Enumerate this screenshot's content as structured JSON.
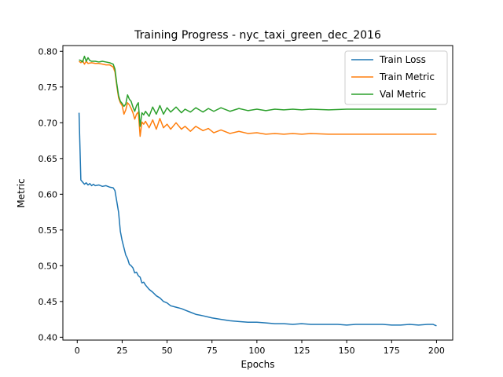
{
  "chart_data": {
    "type": "line",
    "title": "Training Progress - nyc_taxi_green_dec_2016",
    "xlabel": "Epochs",
    "ylabel": "Metric",
    "xlim": [
      -8,
      209
    ],
    "ylim": [
      0.396,
      0.808
    ],
    "xticks": [
      0,
      25,
      50,
      75,
      100,
      125,
      150,
      175,
      200
    ],
    "yticks": [
      0.4,
      0.45,
      0.5,
      0.55,
      0.6,
      0.65,
      0.7,
      0.75,
      0.8
    ],
    "grid": false,
    "legend_position": "top-right",
    "series": [
      {
        "name": "Train Loss",
        "color": "#1f77b4",
        "points": [
          [
            1,
            0.714
          ],
          [
            2,
            0.62
          ],
          [
            3,
            0.617
          ],
          [
            4,
            0.614
          ],
          [
            5,
            0.616
          ],
          [
            6,
            0.613
          ],
          [
            7,
            0.615
          ],
          [
            8,
            0.612
          ],
          [
            9,
            0.614
          ],
          [
            10,
            0.612
          ],
          [
            12,
            0.613
          ],
          [
            14,
            0.611
          ],
          [
            16,
            0.612
          ],
          [
            18,
            0.61
          ],
          [
            20,
            0.609
          ],
          [
            21,
            0.605
          ],
          [
            22,
            0.59
          ],
          [
            23,
            0.575
          ],
          [
            24,
            0.548
          ],
          [
            25,
            0.535
          ],
          [
            26,
            0.525
          ],
          [
            27,
            0.515
          ],
          [
            28,
            0.51
          ],
          [
            29,
            0.502
          ],
          [
            30,
            0.5
          ],
          [
            31,
            0.497
          ],
          [
            32,
            0.49
          ],
          [
            33,
            0.491
          ],
          [
            34,
            0.486
          ],
          [
            35,
            0.484
          ],
          [
            36,
            0.476
          ],
          [
            37,
            0.477
          ],
          [
            38,
            0.473
          ],
          [
            40,
            0.467
          ],
          [
            42,
            0.463
          ],
          [
            44,
            0.458
          ],
          [
            46,
            0.455
          ],
          [
            48,
            0.45
          ],
          [
            50,
            0.448
          ],
          [
            52,
            0.444
          ],
          [
            55,
            0.442
          ],
          [
            58,
            0.44
          ],
          [
            60,
            0.438
          ],
          [
            63,
            0.435
          ],
          [
            66,
            0.432
          ],
          [
            70,
            0.43
          ],
          [
            75,
            0.427
          ],
          [
            80,
            0.425
          ],
          [
            85,
            0.423
          ],
          [
            90,
            0.422
          ],
          [
            95,
            0.421
          ],
          [
            100,
            0.421
          ],
          [
            105,
            0.42
          ],
          [
            110,
            0.419
          ],
          [
            115,
            0.419
          ],
          [
            120,
            0.418
          ],
          [
            125,
            0.419
          ],
          [
            130,
            0.418
          ],
          [
            135,
            0.418
          ],
          [
            140,
            0.418
          ],
          [
            145,
            0.418
          ],
          [
            150,
            0.417
          ],
          [
            155,
            0.418
          ],
          [
            160,
            0.418
          ],
          [
            165,
            0.418
          ],
          [
            170,
            0.418
          ],
          [
            175,
            0.417
          ],
          [
            180,
            0.417
          ],
          [
            185,
            0.418
          ],
          [
            190,
            0.417
          ],
          [
            195,
            0.418
          ],
          [
            198,
            0.418
          ],
          [
            199,
            0.417
          ],
          [
            200,
            0.416
          ]
        ]
      },
      {
        "name": "Train Metric",
        "color": "#ff7f0e",
        "points": [
          [
            1,
            0.786
          ],
          [
            2,
            0.784
          ],
          [
            3,
            0.787
          ],
          [
            4,
            0.782
          ],
          [
            5,
            0.786
          ],
          [
            6,
            0.783
          ],
          [
            8,
            0.784
          ],
          [
            10,
            0.783
          ],
          [
            12,
            0.783
          ],
          [
            14,
            0.782
          ],
          [
            16,
            0.781
          ],
          [
            18,
            0.781
          ],
          [
            20,
            0.778
          ],
          [
            21,
            0.771
          ],
          [
            22,
            0.752
          ],
          [
            23,
            0.735
          ],
          [
            24,
            0.728
          ],
          [
            25,
            0.724
          ],
          [
            26,
            0.712
          ],
          [
            27,
            0.718
          ],
          [
            28,
            0.728
          ],
          [
            29,
            0.725
          ],
          [
            30,
            0.72
          ],
          [
            31,
            0.714
          ],
          [
            32,
            0.705
          ],
          [
            33,
            0.712
          ],
          [
            34,
            0.715
          ],
          [
            35,
            0.681
          ],
          [
            36,
            0.701
          ],
          [
            37,
            0.698
          ],
          [
            38,
            0.702
          ],
          [
            40,
            0.693
          ],
          [
            42,
            0.704
          ],
          [
            44,
            0.691
          ],
          [
            46,
            0.706
          ],
          [
            48,
            0.693
          ],
          [
            50,
            0.698
          ],
          [
            52,
            0.691
          ],
          [
            55,
            0.7
          ],
          [
            58,
            0.691
          ],
          [
            60,
            0.695
          ],
          [
            63,
            0.688
          ],
          [
            66,
            0.695
          ],
          [
            70,
            0.689
          ],
          [
            73,
            0.692
          ],
          [
            76,
            0.686
          ],
          [
            80,
            0.69
          ],
          [
            85,
            0.685
          ],
          [
            90,
            0.688
          ],
          [
            95,
            0.685
          ],
          [
            100,
            0.686
          ],
          [
            105,
            0.684
          ],
          [
            110,
            0.685
          ],
          [
            115,
            0.684
          ],
          [
            120,
            0.685
          ],
          [
            125,
            0.684
          ],
          [
            130,
            0.685
          ],
          [
            140,
            0.684
          ],
          [
            150,
            0.684
          ],
          [
            160,
            0.684
          ],
          [
            170,
            0.684
          ],
          [
            180,
            0.684
          ],
          [
            190,
            0.684
          ],
          [
            200,
            0.684
          ]
        ]
      },
      {
        "name": "Val Metric",
        "color": "#2ca02c",
        "points": [
          [
            1,
            0.788
          ],
          [
            2,
            0.787
          ],
          [
            3,
            0.785
          ],
          [
            4,
            0.793
          ],
          [
            5,
            0.786
          ],
          [
            6,
            0.791
          ],
          [
            7,
            0.787
          ],
          [
            8,
            0.786
          ],
          [
            10,
            0.786
          ],
          [
            12,
            0.785
          ],
          [
            14,
            0.786
          ],
          [
            16,
            0.785
          ],
          [
            18,
            0.784
          ],
          [
            20,
            0.782
          ],
          [
            21,
            0.775
          ],
          [
            22,
            0.755
          ],
          [
            23,
            0.738
          ],
          [
            24,
            0.73
          ],
          [
            25,
            0.727
          ],
          [
            26,
            0.723
          ],
          [
            27,
            0.726
          ],
          [
            28,
            0.739
          ],
          [
            29,
            0.733
          ],
          [
            30,
            0.73
          ],
          [
            31,
            0.722
          ],
          [
            32,
            0.716
          ],
          [
            33,
            0.724
          ],
          [
            34,
            0.728
          ],
          [
            35,
            0.695
          ],
          [
            36,
            0.714
          ],
          [
            37,
            0.711
          ],
          [
            38,
            0.716
          ],
          [
            40,
            0.709
          ],
          [
            42,
            0.722
          ],
          [
            44,
            0.712
          ],
          [
            46,
            0.724
          ],
          [
            48,
            0.712
          ],
          [
            50,
            0.721
          ],
          [
            52,
            0.715
          ],
          [
            55,
            0.722
          ],
          [
            58,
            0.714
          ],
          [
            60,
            0.719
          ],
          [
            63,
            0.715
          ],
          [
            66,
            0.721
          ],
          [
            70,
            0.715
          ],
          [
            73,
            0.72
          ],
          [
            76,
            0.716
          ],
          [
            80,
            0.721
          ],
          [
            85,
            0.716
          ],
          [
            90,
            0.72
          ],
          [
            95,
            0.717
          ],
          [
            100,
            0.719
          ],
          [
            105,
            0.717
          ],
          [
            110,
            0.719
          ],
          [
            115,
            0.718
          ],
          [
            120,
            0.719
          ],
          [
            125,
            0.718
          ],
          [
            130,
            0.719
          ],
          [
            140,
            0.718
          ],
          [
            150,
            0.719
          ],
          [
            160,
            0.719
          ],
          [
            170,
            0.719
          ],
          [
            180,
            0.719
          ],
          [
            190,
            0.719
          ],
          [
            200,
            0.719
          ]
        ]
      }
    ]
  }
}
